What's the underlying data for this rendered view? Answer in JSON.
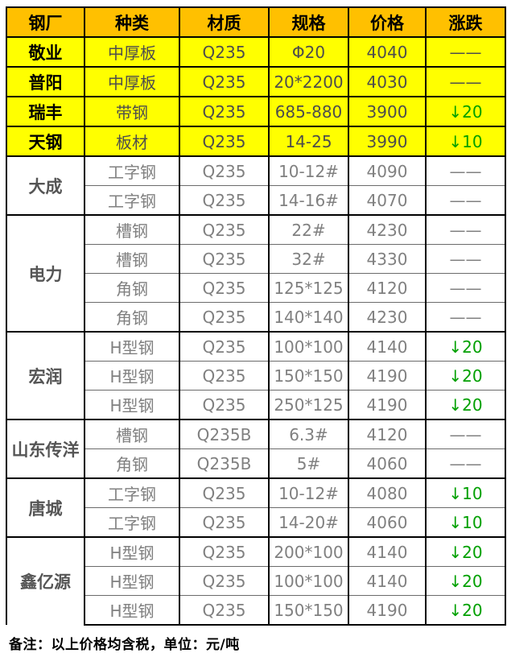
{
  "table": {
    "headers": {
      "factory": "钢厂",
      "type": "种类",
      "grade": "材质",
      "spec": "规格",
      "price": "价格",
      "change": "涨跌"
    },
    "groups": [
      {
        "factory": "敬业",
        "yellow": true,
        "items": [
          {
            "type": "中厚板",
            "grade": "Q235",
            "spec": "Φ20",
            "price": "4040",
            "change": "——"
          }
        ]
      },
      {
        "factory": "普阳",
        "yellow": true,
        "items": [
          {
            "type": "中厚板",
            "grade": "Q235",
            "spec": "20*2200",
            "price": "4030",
            "change": "——"
          }
        ]
      },
      {
        "factory": "瑞丰",
        "yellow": true,
        "items": [
          {
            "type": "带钢",
            "grade": "Q235",
            "spec": "685-880",
            "price": "3900",
            "change": "↓20"
          }
        ]
      },
      {
        "factory": "天钢",
        "yellow": true,
        "items": [
          {
            "type": "板材",
            "grade": "Q235",
            "spec": "14-25",
            "price": "3990",
            "change": "↓10"
          }
        ]
      },
      {
        "factory": "大成",
        "yellow": false,
        "items": [
          {
            "type": "工字钢",
            "grade": "Q235",
            "spec": "10-12#",
            "price": "4090",
            "change": "——"
          },
          {
            "type": "工字钢",
            "grade": "Q235",
            "spec": "14-16#",
            "price": "4070",
            "change": "——"
          }
        ]
      },
      {
        "factory": "电力",
        "yellow": false,
        "items": [
          {
            "type": "槽钢",
            "grade": "Q235",
            "spec": "22#",
            "price": "4230",
            "change": "——"
          },
          {
            "type": "槽钢",
            "grade": "Q235",
            "spec": "32#",
            "price": "4330",
            "change": "——"
          },
          {
            "type": "角钢",
            "grade": "Q235",
            "spec": "125*125",
            "price": "4120",
            "change": "——"
          },
          {
            "type": "角钢",
            "grade": "Q235",
            "spec": "140*140",
            "price": "4230",
            "change": "——"
          }
        ]
      },
      {
        "factory": "宏润",
        "yellow": false,
        "items": [
          {
            "type": "H型钢",
            "grade": "Q235",
            "spec": "100*100",
            "price": "4140",
            "change": "↓20"
          },
          {
            "type": "H型钢",
            "grade": "Q235",
            "spec": "150*150",
            "price": "4190",
            "change": "↓20"
          },
          {
            "type": "H型钢",
            "grade": "Q235",
            "spec": "250*125",
            "price": "4190",
            "change": "↓20"
          }
        ]
      },
      {
        "factory": "山东传洋",
        "yellow": false,
        "items": [
          {
            "type": "槽钢",
            "grade": "Q235B",
            "spec": "6.3#",
            "price": "4120",
            "change": "——"
          },
          {
            "type": "角钢",
            "grade": "Q235B",
            "spec": "5#",
            "price": "4060",
            "change": "——"
          }
        ]
      },
      {
        "factory": "唐城",
        "yellow": false,
        "items": [
          {
            "type": "工字钢",
            "grade": "Q235",
            "spec": "10-12#",
            "price": "4080",
            "change": "↓10"
          },
          {
            "type": "工字钢",
            "grade": "Q235",
            "spec": "14-20#",
            "price": "4060",
            "change": "↓10"
          }
        ]
      },
      {
        "factory": "鑫亿源",
        "yellow": false,
        "items": [
          {
            "type": "H型钢",
            "grade": "Q235",
            "spec": "200*100",
            "price": "4140",
            "change": "↓20"
          },
          {
            "type": "H型钢",
            "grade": "Q235",
            "spec": "100*100",
            "price": "4140",
            "change": "↓20"
          },
          {
            "type": "H型钢",
            "grade": "Q235",
            "spec": "150*150",
            "price": "4190",
            "change": "↓20"
          }
        ]
      }
    ],
    "note": "备注：以上价格均含税，单位：元/吨"
  },
  "colors": {
    "header_bg": "#FFC000",
    "highlight_row_bg": "#FFFF00",
    "down_change_green": "#00A000",
    "body_text_gray": "#808080",
    "border_black": "#000000"
  }
}
